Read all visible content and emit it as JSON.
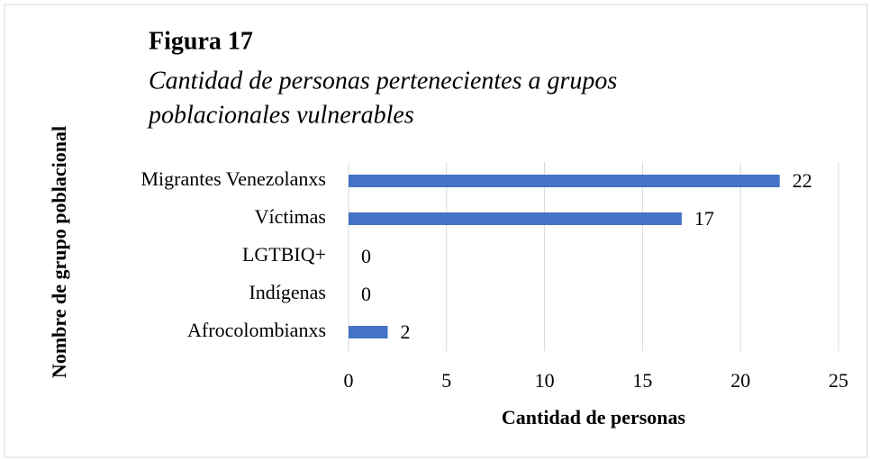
{
  "chart_data": {
    "type": "hbar",
    "title": "Figura 17",
    "subtitle": [
      "Cantidad de personas pertenecientes a grupos",
      "poblacionales vulnerables"
    ],
    "categories": [
      "Migrantes Venezolanxs",
      "Víctimas",
      "LGTBIQ+",
      "Indígenas",
      "Afrocolombianxs"
    ],
    "values": [
      22,
      17,
      0,
      0,
      2
    ],
    "color": "#4472c4",
    "xlim": [
      0,
      25
    ],
    "xticks": [
      0,
      5,
      10,
      15,
      20,
      25
    ],
    "grid": true,
    "xlabel": "Cantidad de personas",
    "ylabel": "Nombre de grupo poblacional"
  }
}
